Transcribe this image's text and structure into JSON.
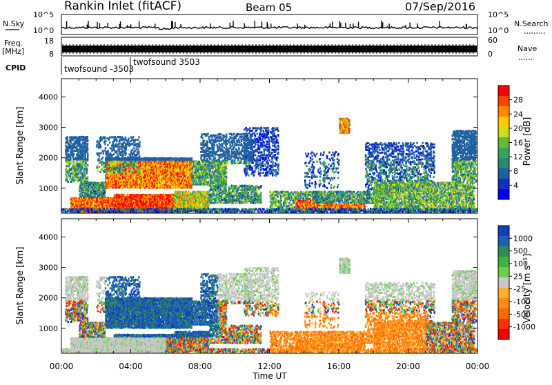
{
  "header": {
    "station": "Rankin Inlet (fitACF)",
    "beam": "Beam 05",
    "date": "07/Sep/2016"
  },
  "colors": {
    "line": "#000000",
    "panel_border": "#000000"
  },
  "chart_data": [
    {
      "type": "line",
      "panel": "noise",
      "left_label": "N.Sky",
      "right_label": "N.Search",
      "y_ticks": [
        "10^5",
        "10^0"
      ],
      "right_ticks": [
        "10^5",
        "10^0"
      ],
      "scale": "log"
    },
    {
      "type": "area",
      "panel": "frequency",
      "left_label_top": "Freq.",
      "left_label_bottom": "[MHz]",
      "y_ticks": [
        "18",
        "8"
      ],
      "right_label": "Nave",
      "right_ticks": [
        "60",
        "0"
      ]
    },
    {
      "type": "table",
      "panel": "cpid",
      "label": "CPID",
      "annotations": [
        {
          "text": "twofsound -3503",
          "time_hours": 0.1
        },
        {
          "text": "twofsound 3503",
          "time_hours": 4.0
        }
      ]
    },
    {
      "type": "heatmap",
      "panel": "power",
      "ylabel": "Slant Range [km]",
      "y_ticks": [
        "4000",
        "3000",
        "2000",
        "1000"
      ],
      "ylim": [
        180,
        4600
      ],
      "xlim_hours": [
        0,
        24
      ],
      "colorbar_label": "Power [dB]",
      "colorbar_ticks": [
        "28",
        "24",
        "20",
        "16",
        "12",
        "8",
        "4"
      ],
      "colorbar_colors": [
        "#ff0000",
        "#ff4400",
        "#ff8800",
        "#ffcc00",
        "#ccdd22",
        "#66bb33",
        "#3aa060",
        "#2a8a70",
        "#2060a0",
        "#1030c0",
        "#0000ff"
      ]
    },
    {
      "type": "heatmap",
      "panel": "velocity",
      "ylabel": "Slant Range [km]",
      "y_ticks": [
        "4000",
        "3000",
        "2000",
        "1000"
      ],
      "ylim": [
        180,
        4600
      ],
      "xlim_hours": [
        0,
        24
      ],
      "colorbar_label": "Velocity [m s⁻¹]",
      "colorbar_ticks": [
        "1000",
        "500",
        "100",
        "25",
        "-25",
        "-100",
        "-500",
        "-1000"
      ],
      "colorbar_colors": [
        "#1040c0",
        "#2060b0",
        "#2e8c5a",
        "#3fb33f",
        "#6ad04a",
        "#c8c8c8",
        "#ffb030",
        "#ff8c1a",
        "#ff6a00",
        "#ff3300",
        "#ff0000"
      ],
      "xlabel": "Time UT",
      "x_ticks": [
        "00:00",
        "04:00",
        "08:00",
        "12:00",
        "16:00",
        "20:00",
        "00:00"
      ]
    }
  ]
}
